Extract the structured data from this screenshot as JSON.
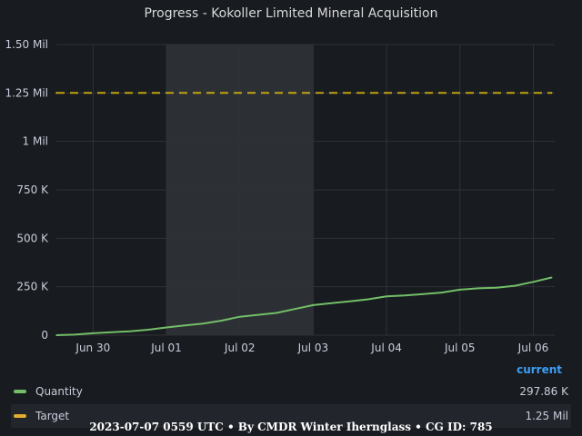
{
  "chart_data": {
    "type": "line",
    "title": "Progress - Kokoller Limited Mineral Acquisition",
    "xlabel": "",
    "ylabel": "",
    "x_tick_labels": [
      "Jun 30",
      "Jul 01",
      "Jul 02",
      "Jul 03",
      "Jul 04",
      "Jul 05",
      "Jul 06"
    ],
    "y_tick_labels": [
      "0",
      "250 K",
      "500 K",
      "750 K",
      "1 Mil",
      "1.25 Mil",
      "1.50 Mil"
    ],
    "ylim": [
      0,
      1500000
    ],
    "grid": true,
    "highlight_region": {
      "from": "2023-07-01 00:00",
      "to": "2023-07-03 00:00"
    },
    "series": [
      {
        "name": "Quantity",
        "color": "#73bf69",
        "style": "solid",
        "x": [
          "2023-06-29 12:00",
          "2023-06-29 18:00",
          "2023-06-30 00:00",
          "2023-06-30 06:00",
          "2023-06-30 12:00",
          "2023-06-30 18:00",
          "2023-07-01 00:00",
          "2023-07-01 06:00",
          "2023-07-01 12:00",
          "2023-07-01 18:00",
          "2023-07-02 00:00",
          "2023-07-02 06:00",
          "2023-07-02 12:00",
          "2023-07-02 18:00",
          "2023-07-03 00:00",
          "2023-07-03 06:00",
          "2023-07-03 12:00",
          "2023-07-03 18:00",
          "2023-07-04 00:00",
          "2023-07-04 06:00",
          "2023-07-04 12:00",
          "2023-07-04 18:00",
          "2023-07-05 00:00",
          "2023-07-05 06:00",
          "2023-07-05 12:00",
          "2023-07-05 18:00",
          "2023-07-06 00:00",
          "2023-07-06 06:00"
        ],
        "values": [
          0,
          3000,
          10000,
          15000,
          20000,
          28000,
          40000,
          50000,
          60000,
          75000,
          95000,
          105000,
          115000,
          135000,
          155000,
          165000,
          175000,
          185000,
          200000,
          205000,
          212000,
          220000,
          235000,
          242000,
          245000,
          255000,
          275000,
          297860
        ]
      },
      {
        "name": "Target",
        "color": "#f2cc0c",
        "style": "dashed",
        "x": [
          "2023-06-29 12:00",
          "2023-07-06 06:00"
        ],
        "values": [
          1250000,
          1250000
        ]
      }
    ]
  },
  "legend": {
    "header": "current",
    "items": [
      {
        "name": "Quantity",
        "value": "297.86 K",
        "color": "#73bf69"
      },
      {
        "name": "Target",
        "value": "1.25 Mil",
        "color": "#e5ac2e"
      }
    ]
  },
  "footer": "2023-07-07 0559 UTC • By CMDR Winter Iherng​lass • CG ID: 785"
}
